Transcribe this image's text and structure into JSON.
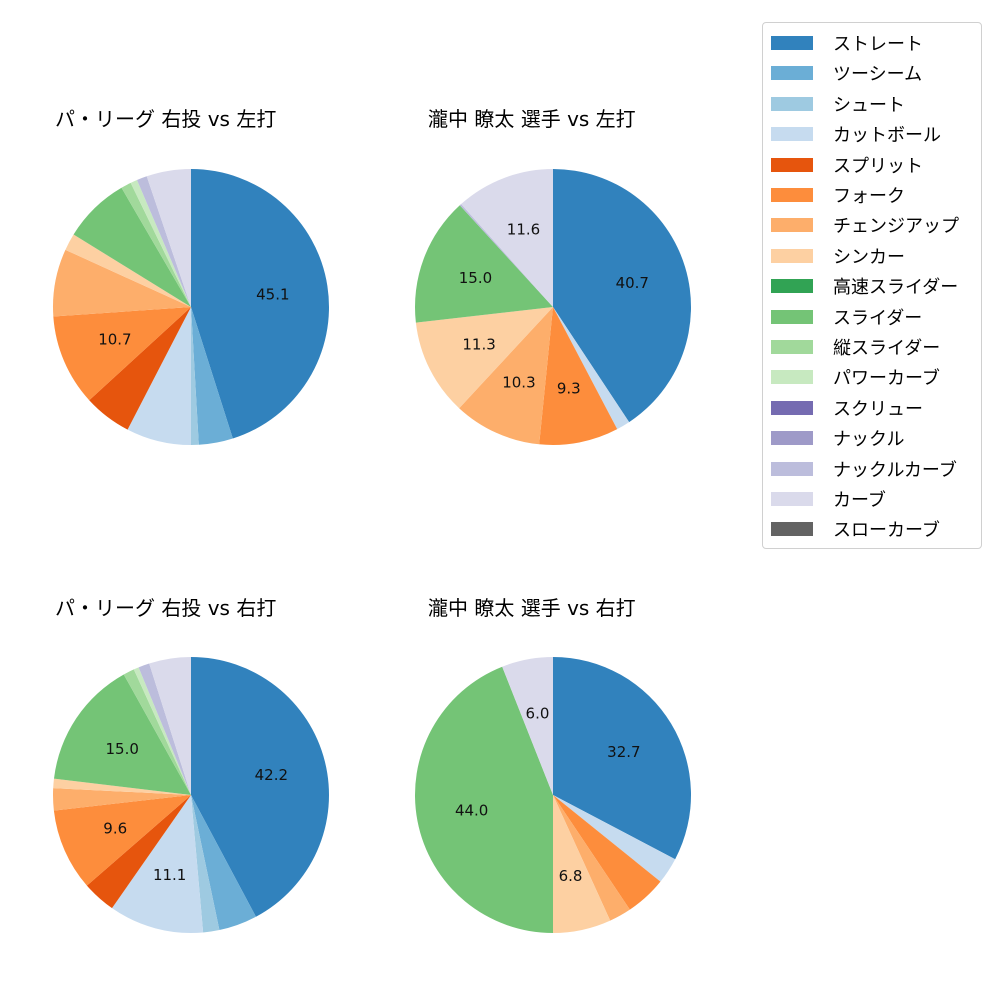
{
  "chart_data": [
    {
      "type": "pie",
      "title": "パ・リーグ 右投 vs 左打",
      "categories": [
        "ストレート",
        "ツーシーム",
        "シュート",
        "カットボール",
        "スプリット",
        "フォーク",
        "チェンジアップ",
        "シンカー",
        "スライダー",
        "縦スライダー",
        "パワーカーブ",
        "ナックルカーブ",
        "カーブ"
      ],
      "values": [
        45.1,
        4.0,
        0.9,
        7.6,
        5.6,
        10.7,
        7.9,
        2.0,
        7.8,
        1.2,
        0.8,
        1.2,
        5.2
      ],
      "labels_shown": [
        "45.1",
        "",
        "",
        "",
        "",
        "10.7",
        "",
        "",
        "",
        "",
        "",
        "",
        ""
      ],
      "start_angle": 90,
      "direction": "clockwise"
    },
    {
      "type": "pie",
      "title": "瀧中 瞭太 選手 vs 左打",
      "categories": [
        "ストレート",
        "カットボール",
        "フォーク",
        "チェンジアップ",
        "シンカー",
        "スライダー",
        "ナックルカーブ",
        "カーブ"
      ],
      "values": [
        40.7,
        1.6,
        9.3,
        10.3,
        11.3,
        15.0,
        0.2,
        11.6
      ],
      "labels_shown": [
        "40.7",
        "",
        "9.3",
        "10.3",
        "11.3",
        "15.0",
        "",
        "11.6"
      ],
      "start_angle": 90,
      "direction": "clockwise"
    },
    {
      "type": "pie",
      "title": "パ・リーグ 右投 vs 右打",
      "categories": [
        "ストレート",
        "ツーシーム",
        "シュート",
        "カットボール",
        "スプリット",
        "フォーク",
        "チェンジアップ",
        "シンカー",
        "スライダー",
        "縦スライダー",
        "パワーカーブ",
        "ナックルカーブ",
        "カーブ"
      ],
      "values": [
        42.2,
        4.5,
        1.9,
        11.1,
        3.9,
        9.6,
        2.6,
        1.1,
        15.0,
        1.3,
        0.6,
        1.3,
        4.9
      ],
      "labels_shown": [
        "42.2",
        "",
        "",
        "11.1",
        "",
        "9.6",
        "",
        "",
        "15.0",
        "",
        "",
        "",
        ""
      ],
      "start_angle": 90,
      "direction": "clockwise"
    },
    {
      "type": "pie",
      "title": "瀧中 瞭太 選手 vs 右打",
      "categories": [
        "ストレート",
        "カットボール",
        "フォーク",
        "チェンジアップ",
        "シンカー",
        "スライダー",
        "カーブ"
      ],
      "values": [
        32.7,
        3.1,
        4.8,
        2.6,
        6.8,
        44.0,
        6.0
      ],
      "labels_shown": [
        "32.7",
        "",
        "",
        "",
        "6.8",
        "44.0",
        "6.0"
      ],
      "start_angle": 90,
      "direction": "clockwise"
    }
  ],
  "legend": {
    "items": [
      {
        "label": "ストレート",
        "color": "#3182bd"
      },
      {
        "label": "ツーシーム",
        "color": "#6baed6"
      },
      {
        "label": "シュート",
        "color": "#9ecae1"
      },
      {
        "label": "カットボール",
        "color": "#c6dbef"
      },
      {
        "label": "スプリット",
        "color": "#e6550d"
      },
      {
        "label": "フォーク",
        "color": "#fd8d3c"
      },
      {
        "label": "チェンジアップ",
        "color": "#fdae6b"
      },
      {
        "label": "シンカー",
        "color": "#fdd0a2"
      },
      {
        "label": "高速スライダー",
        "color": "#31a354"
      },
      {
        "label": "スライダー",
        "color": "#74c476"
      },
      {
        "label": "縦スライダー",
        "color": "#a1d99b"
      },
      {
        "label": "パワーカーブ",
        "color": "#c7e9c0"
      },
      {
        "label": "スクリュー",
        "color": "#756bb1"
      },
      {
        "label": "ナックル",
        "color": "#9e9ac8"
      },
      {
        "label": "ナックルカーブ",
        "color": "#bcbddc"
      },
      {
        "label": "カーブ",
        "color": "#dadaeb"
      },
      {
        "label": "スローカーブ",
        "color": "#636363"
      }
    ]
  },
  "panels": [
    {
      "title": "パ・リーグ 右投 vs 左打"
    },
    {
      "title": "瀧中 瞭太 選手 vs 左打"
    },
    {
      "title": "パ・リーグ 右投 vs 右打"
    },
    {
      "title": "瀧中 瞭太 選手 vs 右打"
    }
  ]
}
